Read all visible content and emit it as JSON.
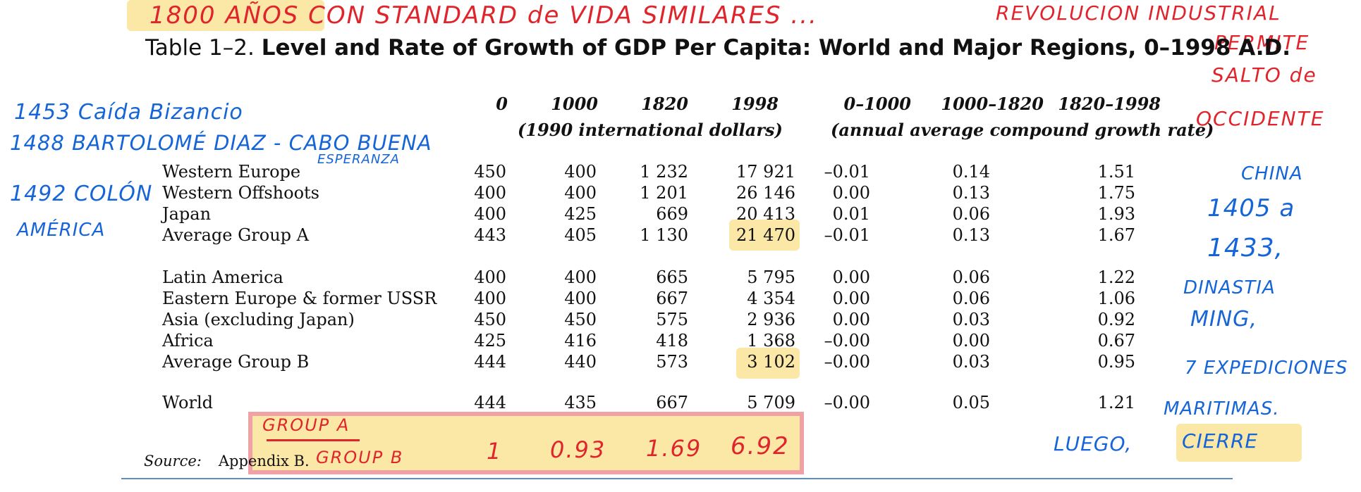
{
  "annotations": {
    "top_banner": "1800 AÑOS CON STANDARD de VIDA SIMILARES ...",
    "top_right_1": "REVOLUCION INDUSTRIAL",
    "top_right_2": "PERMITE",
    "top_right_3": "SALTO de",
    "top_right_4": "OCCIDENTE",
    "left_1": "1453 Caída Bizancio",
    "left_2": "1488 BARTOLOMÉ DIAZ - CABO BUENA",
    "left_2b": "ESPERANZA",
    "left_3": "1492 COLÓN",
    "left_4": "AMÉRICA",
    "right_1": "CHINA",
    "right_2": "1405 a",
    "right_3": "1433,",
    "right_4": "DINASTIA",
    "right_5": "MING,",
    "right_6": "7 EXPEDICIONES",
    "right_7": "MARITIMAS.",
    "right_8": "LUEGO,",
    "right_9": "CIERRE",
    "box_label_1": "GROUP A",
    "box_label_2": "GROUP B",
    "box_values": [
      "1",
      "0.93",
      "1.69",
      "6.92"
    ]
  },
  "table": {
    "title_prefix": "Table 1–2.",
    "title_bold": "Level and Rate of Growth of GDP Per Capita: World and Major Regions, 0–1998 A.D.",
    "columns": [
      "0",
      "1000",
      "1820",
      "1998",
      "0–1000",
      "1000–1820",
      "1820–1998"
    ],
    "unit_left": "(1990 international dollars)",
    "unit_right": "(annual average compound growth rate)",
    "rows": [
      {
        "label": "Western Europe",
        "values": [
          "450",
          "400",
          "1 232",
          "17 921",
          "–0.01",
          "0.14",
          "1.51"
        ]
      },
      {
        "label": "Western Offshoots",
        "values": [
          "400",
          "400",
          "1 201",
          "26 146",
          "0.00",
          "0.13",
          "1.75"
        ]
      },
      {
        "label": "Japan",
        "values": [
          "400",
          "425",
          "669",
          "20 413",
          "0.01",
          "0.06",
          "1.93"
        ]
      },
      {
        "label": "Average Group A",
        "values": [
          "443",
          "405",
          "1 130",
          "21 470",
          "–0.01",
          "0.13",
          "1.67"
        ]
      },
      {
        "label": "Latin America",
        "values": [
          "400",
          "400",
          "665",
          "5 795",
          "0.00",
          "0.06",
          "1.22"
        ]
      },
      {
        "label": "Eastern Europe & former USSR",
        "values": [
          "400",
          "400",
          "667",
          "4 354",
          "0.00",
          "0.06",
          "1.06"
        ]
      },
      {
        "label": "Asia (excluding Japan)",
        "values": [
          "450",
          "450",
          "575",
          "2 936",
          "0.00",
          "0.03",
          "0.92"
        ]
      },
      {
        "label": "Africa",
        "values": [
          "425",
          "416",
          "418",
          "1 368",
          "–0.00",
          "0.00",
          "0.67"
        ]
      },
      {
        "label": "Average Group B",
        "values": [
          "444",
          "440",
          "573",
          "3 102",
          "–0.00",
          "0.03",
          "0.95"
        ]
      },
      {
        "label": "World",
        "values": [
          "444",
          "435",
          "667",
          "5 709",
          "–0.00",
          "0.05",
          "1.21"
        ]
      }
    ],
    "source_label": "Source:",
    "source_text": "Appendix B."
  },
  "colors": {
    "red_ink": "#e0242c",
    "blue_ink": "#1565d8",
    "highlight": "#fbe7a6",
    "box_border": "#f0a1a6"
  }
}
